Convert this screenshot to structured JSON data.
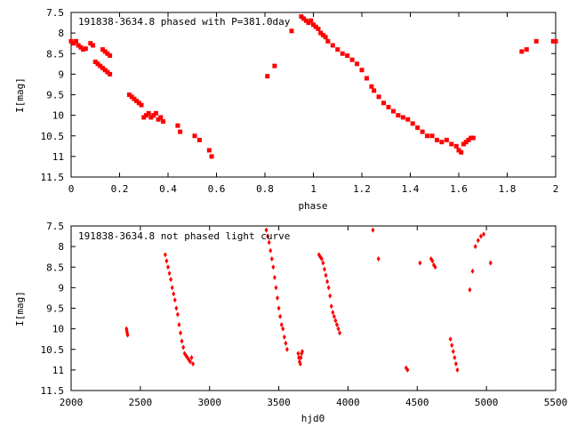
{
  "chart_data": [
    {
      "type": "scatter",
      "title": "191838-3634.8 phased with P=381.0day",
      "xlabel": "phase",
      "ylabel": "I[mag]",
      "xlim": [
        0,
        2
      ],
      "ylim": [
        11.5,
        7.5
      ],
      "y_inverted": true,
      "grid": false,
      "xticks": [
        0,
        0.2,
        0.4,
        0.6,
        0.8,
        1,
        1.2,
        1.4,
        1.6,
        1.8,
        2
      ],
      "xtick_labels": [
        "0",
        "0.2",
        "0.4",
        "0.6",
        "0.8",
        "1",
        "1.2",
        "1.4",
        "1.6",
        "1.8",
        "2"
      ],
      "yticks": [
        7.5,
        8,
        8.5,
        9,
        9.5,
        10,
        10.5,
        11,
        11.5
      ],
      "ytick_labels": [
        "7.5",
        "8",
        "8.5",
        "9",
        "9.5",
        "10",
        "10.5",
        "11",
        "11.5"
      ],
      "marker_color": "#ff0000",
      "series": [
        {
          "x": [
            0.0,
            0.01,
            0.02,
            0.03,
            0.04,
            0.05,
            0.06,
            0.08,
            0.09,
            0.1,
            0.11,
            0.12,
            0.13,
            0.14,
            0.15,
            0.16,
            0.13,
            0.14,
            0.15,
            0.16,
            0.24,
            0.25,
            0.26,
            0.27,
            0.28,
            0.29,
            0.3,
            0.31,
            0.32,
            0.33,
            0.34,
            0.35,
            0.36,
            0.37,
            0.38,
            0.44,
            0.45,
            0.51,
            0.53,
            0.57,
            0.58,
            0.81,
            0.84,
            0.91,
            0.95,
            0.96,
            0.97,
            0.98,
            0.99,
            1.0,
            1.01,
            1.02,
            1.03,
            1.04,
            1.05,
            1.06,
            1.08,
            1.1,
            1.12,
            1.14,
            1.16,
            1.18,
            1.2,
            1.22,
            1.24,
            1.25,
            1.27,
            1.29,
            1.31,
            1.33,
            1.35,
            1.37,
            1.39,
            1.41,
            1.43,
            1.45,
            1.47,
            1.49,
            1.51,
            1.53,
            1.55,
            1.57,
            1.59,
            1.6,
            1.61,
            1.62,
            1.63,
            1.64,
            1.65,
            1.66,
            1.86,
            1.88,
            1.92,
            1.99,
            2.0
          ],
          "y": [
            8.2,
            8.25,
            8.2,
            8.3,
            8.35,
            8.4,
            8.38,
            8.25,
            8.3,
            8.7,
            8.75,
            8.8,
            8.85,
            8.9,
            8.95,
            9.0,
            8.4,
            8.45,
            8.5,
            8.55,
            9.5,
            9.55,
            9.6,
            9.65,
            9.7,
            9.75,
            10.05,
            10.0,
            9.95,
            10.05,
            10.0,
            9.95,
            10.1,
            10.05,
            10.15,
            10.25,
            10.4,
            10.5,
            10.6,
            10.85,
            11.0,
            9.05,
            8.8,
            7.95,
            7.6,
            7.65,
            7.7,
            7.75,
            7.7,
            7.8,
            7.85,
            7.9,
            8.0,
            8.05,
            8.1,
            8.2,
            8.3,
            8.4,
            8.5,
            8.55,
            8.65,
            8.75,
            8.9,
            9.1,
            9.3,
            9.4,
            9.55,
            9.7,
            9.8,
            9.9,
            10.0,
            10.05,
            10.1,
            10.2,
            10.3,
            10.4,
            10.5,
            10.5,
            10.6,
            10.65,
            10.6,
            10.7,
            10.75,
            10.85,
            10.9,
            10.7,
            10.65,
            10.6,
            10.55,
            10.55,
            8.45,
            8.4,
            8.2,
            8.2,
            8.2
          ]
        }
      ]
    },
    {
      "type": "scatter",
      "title": "191838-3634.8 not phased light curve",
      "xlabel": "hjd0",
      "ylabel": "I[mag]",
      "xlim": [
        2000,
        5500
      ],
      "ylim": [
        11.5,
        7.5
      ],
      "y_inverted": true,
      "grid": false,
      "xticks": [
        2000,
        2500,
        3000,
        3500,
        4000,
        4500,
        5000,
        5500
      ],
      "xtick_labels": [
        "2000",
        "2500",
        "3000",
        "3500",
        "4000",
        "4500",
        "5000",
        "5500"
      ],
      "yticks": [
        7.5,
        8,
        8.5,
        9,
        9.5,
        10,
        10.5,
        11,
        11.5
      ],
      "ytick_labels": [
        "7.5",
        "8",
        "8.5",
        "9",
        "9.5",
        "10",
        "10.5",
        "11",
        "11.5"
      ],
      "marker_color": "#ff0000",
      "series": [
        {
          "x": [
            2400,
            2402,
            2405,
            2408,
            2680,
            2690,
            2700,
            2710,
            2720,
            2730,
            2740,
            2750,
            2760,
            2770,
            2780,
            2790,
            2800,
            2810,
            2820,
            2830,
            2840,
            2850,
            2860,
            2870,
            2880,
            3410,
            3420,
            3430,
            3440,
            3450,
            3460,
            3470,
            3480,
            3490,
            3500,
            3510,
            3520,
            3530,
            3540,
            3550,
            3560,
            3640,
            3645,
            3650,
            3655,
            3660,
            3665,
            3670,
            3790,
            3800,
            3810,
            3820,
            3830,
            3840,
            3850,
            3860,
            3870,
            3880,
            3890,
            3900,
            3910,
            3920,
            3930,
            3940,
            4180,
            4220,
            4420,
            4430,
            4520,
            4600,
            4610,
            4620,
            4630,
            4740,
            4750,
            4760,
            4770,
            4780,
            4790,
            4880,
            4900,
            4920,
            4940,
            4960,
            4980,
            5030
          ],
          "y": [
            10.0,
            10.05,
            10.1,
            10.15,
            8.2,
            8.35,
            8.5,
            8.65,
            8.8,
            9.0,
            9.15,
            9.3,
            9.5,
            9.65,
            9.9,
            10.1,
            10.3,
            10.45,
            10.6,
            10.65,
            10.7,
            10.75,
            10.8,
            10.7,
            10.85,
            7.6,
            7.75,
            7.9,
            8.1,
            8.3,
            8.5,
            8.75,
            9.0,
            9.25,
            9.5,
            9.7,
            9.9,
            10.0,
            10.2,
            10.35,
            10.5,
            10.6,
            10.7,
            10.8,
            10.85,
            10.7,
            10.6,
            10.55,
            8.2,
            8.25,
            8.3,
            8.4,
            8.55,
            8.7,
            8.85,
            9.0,
            9.2,
            9.45,
            9.6,
            9.7,
            9.8,
            9.9,
            10.0,
            10.1,
            7.6,
            8.3,
            10.95,
            11.0,
            8.4,
            8.3,
            8.35,
            8.45,
            8.5,
            10.25,
            10.4,
            10.55,
            10.7,
            10.85,
            11.0,
            9.05,
            8.6,
            8.0,
            7.85,
            7.75,
            7.7,
            8.4
          ]
        }
      ]
    }
  ]
}
